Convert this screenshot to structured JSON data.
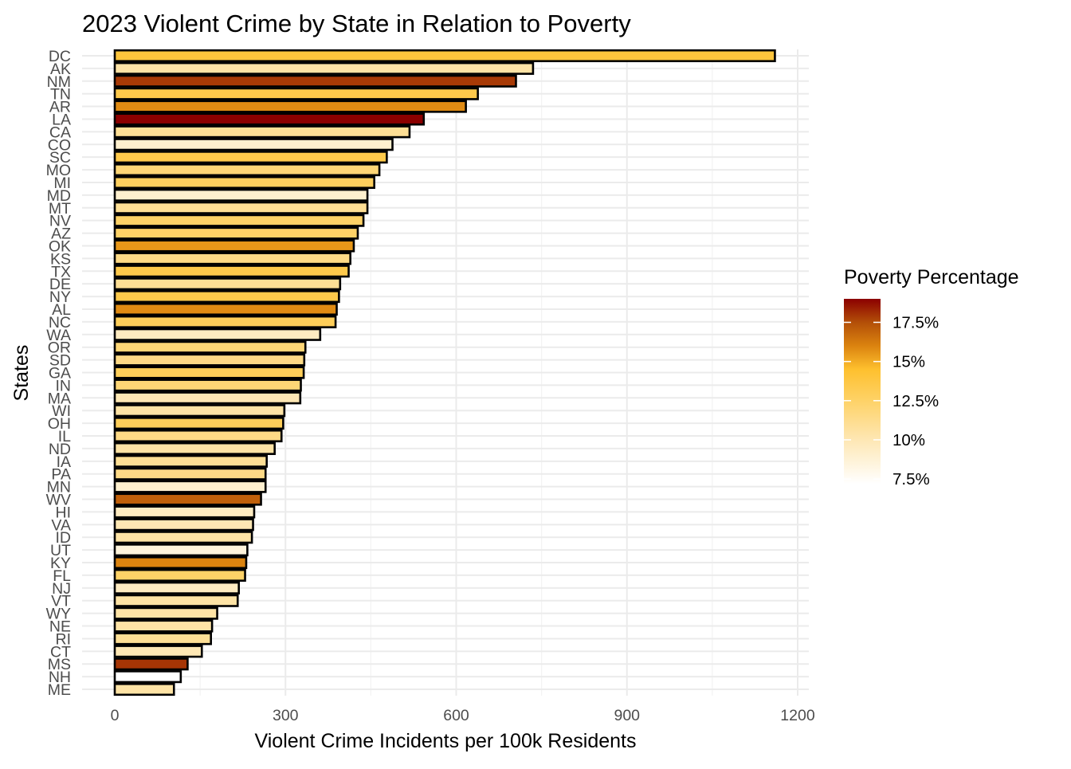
{
  "chart_data": {
    "type": "bar",
    "orientation": "horizontal",
    "title": "2023 Violent Crime by State in Relation to Poverty",
    "xlabel": "Violent Crime Incidents per 100k Residents",
    "ylabel": "States",
    "xlim": [
      0,
      1210
    ],
    "x_ticks": [
      0,
      300,
      600,
      900,
      1200
    ],
    "grid": true,
    "legend": {
      "title": "Poverty Percentage",
      "position": "right",
      "ticks": [
        {
          "value": 17.5,
          "label": "17.5%"
        },
        {
          "value": 15,
          "label": "15%"
        },
        {
          "value": 12.5,
          "label": "12.5%"
        },
        {
          "value": 10,
          "label": "10%"
        },
        {
          "value": 7.5,
          "label": "7.5%"
        }
      ],
      "range": [
        7.2,
        19.0
      ]
    },
    "color_scale": {
      "stops": [
        {
          "value": 7.2,
          "color": "#ffffff"
        },
        {
          "value": 10.0,
          "color": "#fee7b4"
        },
        {
          "value": 12.5,
          "color": "#fed267"
        },
        {
          "value": 14.5,
          "color": "#fec02e"
        },
        {
          "value": 16.0,
          "color": "#db830f"
        },
        {
          "value": 17.5,
          "color": "#b34f08"
        },
        {
          "value": 19.0,
          "color": "#8b0000"
        }
      ]
    },
    "categories": [
      "DC",
      "AK",
      "NM",
      "TN",
      "AR",
      "LA",
      "CA",
      "CO",
      "SC",
      "MO",
      "MI",
      "MD",
      "MT",
      "NV",
      "AZ",
      "OK",
      "KS",
      "TX",
      "DE",
      "NY",
      "AL",
      "NC",
      "WA",
      "OR",
      "SD",
      "GA",
      "IN",
      "MA",
      "WI",
      "OH",
      "IL",
      "ND",
      "IA",
      "PA",
      "MN",
      "WV",
      "HI",
      "VA",
      "ID",
      "UT",
      "KY",
      "FL",
      "NJ",
      "VT",
      "WY",
      "NE",
      "RI",
      "CT",
      "MS",
      "NH",
      "ME"
    ],
    "values": [
      1160,
      735,
      705,
      638,
      617,
      543,
      518,
      488,
      478,
      465,
      456,
      444,
      444,
      437,
      427,
      420,
      414,
      411,
      396,
      394,
      390,
      388,
      361,
      335,
      333,
      332,
      327,
      326,
      298,
      296,
      293,
      281,
      267,
      265,
      265,
      257,
      245,
      243,
      241,
      233,
      231,
      229,
      218,
      216,
      180,
      171,
      169,
      153,
      128,
      116,
      104
    ],
    "poverty": [
      14.0,
      10.5,
      17.9,
      13.5,
      15.8,
      19.0,
      11.0,
      9.0,
      13.5,
      12.0,
      12.8,
      9.0,
      11.0,
      12.5,
      12.5,
      15.5,
      11.5,
      13.5,
      11.0,
      13.5,
      15.8,
      13.0,
      9.5,
      12.0,
      11.5,
      13.0,
      12.0,
      10.0,
      10.5,
      13.0,
      11.5,
      10.5,
      11.0,
      11.5,
      9.0,
      17.0,
      9.5,
      10.0,
      10.5,
      8.5,
      16.0,
      12.5,
      9.5,
      10.5,
      10.5,
      10.5,
      11.0,
      10.0,
      18.0,
      7.2,
      10.5
    ]
  }
}
